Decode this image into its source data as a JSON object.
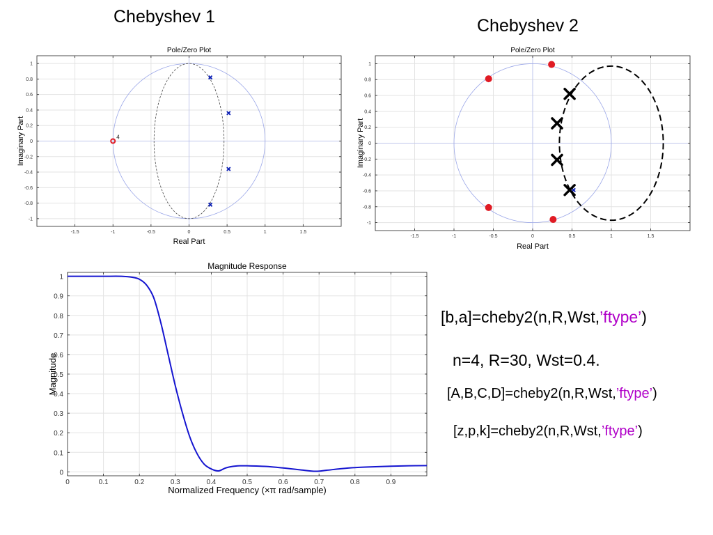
{
  "slide": {
    "heading_left": "Chebyshev 1",
    "heading_right": "Chebyshev 2",
    "code_ba": {
      "prefix": "[b,a]=cheby2(n,R,Wst,",
      "literal": "’ftype’",
      "suffix": ")"
    },
    "params_text": "n=4, R=30, Wst=0.4.",
    "code_abcd": {
      "prefix": "[A,B,C,D]=cheby2(n,R,Wst,",
      "literal": "’ftype’",
      "suffix": ")"
    },
    "code_zpk": {
      "prefix": "[z,p,k]=cheby2(n,R,Wst,",
      "literal": "’ftype’",
      "suffix": ")"
    }
  },
  "colors": {
    "axis": "#000000",
    "grid": "#e3e3e3",
    "unit_circle": "#9aa6e8",
    "reference_axis": "#b4bcef",
    "pole_marker": "#0b1fb5",
    "zero_marker": "#e01b24",
    "annotation_pole": "#000000",
    "response_line": "#1515d0",
    "code_literal": "#b000c8"
  },
  "chart_data": [
    {
      "id": "cheby1-pz",
      "type": "scatter",
      "title": "Pole/Zero Plot",
      "xlabel": "Real Part",
      "ylabel": "Imaginary Part",
      "xlim": [
        -2.0,
        2.0
      ],
      "ylim": [
        -1.1,
        1.1
      ],
      "xticks": [
        -1.5,
        -1,
        -0.5,
        0,
        0.5,
        1,
        1.5
      ],
      "xtick_labels": [
        "-1.5",
        "-1",
        "-0.5",
        "0",
        "0.5",
        "1",
        "1.5"
      ],
      "yticks": [
        1,
        0.8,
        0.6,
        0.4,
        0.2,
        0,
        -0.2,
        -0.4,
        -0.6,
        -0.8,
        -1
      ],
      "ytick_labels": [
        "1",
        "0.8",
        "0.6",
        "0.4",
        "0.2",
        "0",
        "-0.2",
        "-0.4",
        "-0.6",
        "-0.8",
        "-1"
      ],
      "grid": true,
      "unit_circle": true,
      "poles": [
        [
          0.28,
          0.82
        ],
        [
          0.52,
          0.36
        ],
        [
          0.52,
          -0.36
        ],
        [
          0.28,
          -0.82
        ]
      ],
      "zeros": [
        [
          -1.0,
          0.0
        ]
      ],
      "zero_multiplicity_label": "4",
      "ellipse": {
        "cx": 0.0,
        "cy": 0.0,
        "rx": 0.46,
        "ry": 1.0,
        "style": "dashed-thin"
      }
    },
    {
      "id": "cheby2-pz",
      "type": "scatter",
      "title": "Pole/Zero Plot",
      "xlabel": "Real Part",
      "ylabel": "Imaginary Part",
      "xlim": [
        -2.0,
        2.0
      ],
      "ylim": [
        -1.1,
        1.1
      ],
      "xticks": [
        -1.5,
        -1,
        -0.5,
        0,
        0.5,
        1,
        1.5
      ],
      "xtick_labels": [
        "-1.5",
        "-1",
        "-0.5",
        "0",
        "0.5",
        "1",
        "1.5"
      ],
      "yticks": [
        1,
        0.8,
        0.6,
        0.4,
        0.2,
        0,
        -0.2,
        -0.4,
        -0.6,
        -0.8,
        -1
      ],
      "ytick_labels": [
        "1",
        "0.8",
        "0.6",
        "0.4",
        "0.2",
        "0",
        "-0.2",
        "-0.4",
        "-0.6",
        "-0.8",
        "-1"
      ],
      "grid": true,
      "unit_circle": true,
      "zeros": [
        [
          0.24,
          0.99
        ],
        [
          -0.56,
          0.81
        ],
        [
          -0.56,
          -0.81
        ],
        [
          0.26,
          -0.96
        ]
      ],
      "poles": [
        [
          0.52,
          -0.59
        ]
      ],
      "annotated_poles": [
        [
          0.47,
          0.62
        ],
        [
          0.31,
          0.25
        ],
        [
          0.31,
          -0.21
        ],
        [
          0.47,
          -0.59
        ]
      ],
      "ellipse": {
        "cx": 1.0,
        "cy": 0.0,
        "rx": 0.66,
        "ry": 0.97,
        "style": "dashed-thick"
      }
    },
    {
      "id": "magnitude-response",
      "type": "line",
      "title": "Magnitude Response",
      "xlabel": "Normalized Frequency (×π rad/sample)",
      "ylabel": "Magnitude",
      "xlim": [
        0,
        1.0
      ],
      "ylim": [
        -0.02,
        1.02
      ],
      "xticks": [
        0,
        0.1,
        0.2,
        0.3,
        0.4,
        0.5,
        0.6,
        0.7,
        0.8,
        0.9
      ],
      "xtick_labels": [
        "0",
        "0.1",
        "0.2",
        "0.3",
        "0.4",
        "0.5",
        "0.6",
        "0.7",
        "0.8",
        "0.9"
      ],
      "yticks": [
        0,
        0.1,
        0.2,
        0.3,
        0.4,
        0.5,
        0.6,
        0.7,
        0.8,
        0.9,
        1
      ],
      "ytick_labels": [
        "0",
        "0.1",
        "0.2",
        "0.3",
        "0.4",
        "0.5",
        "0.6",
        "0.7",
        "0.8",
        "0.9",
        "1"
      ],
      "grid": true,
      "x": [
        0,
        0.05,
        0.1,
        0.15,
        0.18,
        0.2,
        0.22,
        0.24,
        0.26,
        0.28,
        0.3,
        0.32,
        0.34,
        0.36,
        0.38,
        0.4,
        0.42,
        0.44,
        0.46,
        0.48,
        0.5,
        0.55,
        0.6,
        0.65,
        0.69,
        0.72,
        0.76,
        0.8,
        0.85,
        0.9,
        0.95,
        1.0
      ],
      "y": [
        1.0,
        1.0,
        1.0,
        1.0,
        0.995,
        0.985,
        0.955,
        0.89,
        0.76,
        0.6,
        0.44,
        0.3,
        0.18,
        0.095,
        0.04,
        0.015,
        0.005,
        0.02,
        0.028,
        0.031,
        0.031,
        0.028,
        0.02,
        0.01,
        0.003,
        0.008,
        0.016,
        0.022,
        0.026,
        0.029,
        0.031,
        0.032
      ]
    }
  ]
}
